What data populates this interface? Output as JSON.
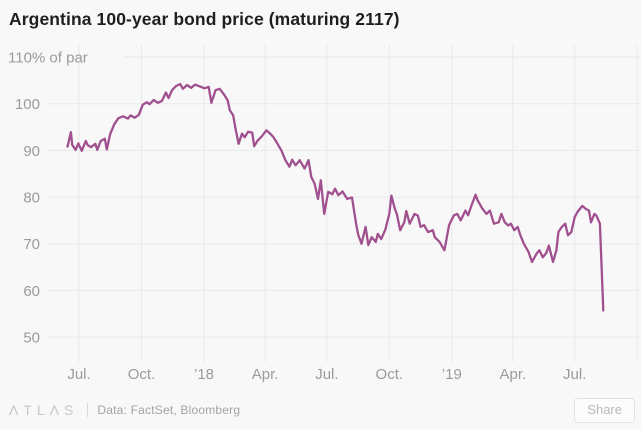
{
  "header": {
    "title": "Argentina 100-year bond price (maturing 2117)"
  },
  "colors": {
    "background": "#f8f8f8",
    "gridline": "#e9e8ea",
    "axis_text": "#9b9b9b",
    "title_text": "#1f1f1f",
    "line": "#a0508e",
    "footer_text": "#a3a3a3",
    "logo_text": "#c7c6ca",
    "share_text": "#b9b9b9",
    "share_border": "#e2e2e2"
  },
  "chart_data": {
    "type": "line",
    "title": "Argentina 100-year bond price (maturing 2117)",
    "unit_label": "% of par",
    "grid": true,
    "legend": "none",
    "y_axis": {
      "min": 50,
      "max": 110,
      "ticks": [
        {
          "value": 110,
          "label": "110% of par",
          "with_unit": true
        },
        {
          "value": 100,
          "label": "100"
        },
        {
          "value": 90,
          "label": "90"
        },
        {
          "value": 80,
          "label": "80"
        },
        {
          "value": 70,
          "label": "70"
        },
        {
          "value": 60,
          "label": "60"
        },
        {
          "value": 50,
          "label": "50"
        }
      ]
    },
    "x_axis": {
      "range": [
        "2017-06-14",
        "2019-10-01"
      ],
      "ticks": [
        {
          "date": "2017-07-01",
          "label": "Jul."
        },
        {
          "date": "2017-10-01",
          "label": "Oct."
        },
        {
          "date": "2018-01-01",
          "label": "’18"
        },
        {
          "date": "2018-04-01",
          "label": "Apr."
        },
        {
          "date": "2018-07-01",
          "label": "Jul."
        },
        {
          "date": "2018-10-01",
          "label": "Oct."
        },
        {
          "date": "2019-01-01",
          "label": "’19"
        },
        {
          "date": "2019-04-01",
          "label": "Apr."
        },
        {
          "date": "2019-07-01",
          "label": "Jul."
        },
        {
          "date": "2019-10-01",
          "label": ""
        }
      ]
    },
    "series": [
      {
        "name": "Bond price (% of par)",
        "color": "#a0508e",
        "points": [
          [
            "2017-06-14",
            90.8
          ],
          [
            "2017-06-19",
            93.9
          ],
          [
            "2017-06-21",
            91.2
          ],
          [
            "2017-06-26",
            90.1
          ],
          [
            "2017-06-30",
            91.5
          ],
          [
            "2017-07-05",
            89.9
          ],
          [
            "2017-07-11",
            92.0
          ],
          [
            "2017-07-14",
            91.1
          ],
          [
            "2017-07-19",
            90.7
          ],
          [
            "2017-07-25",
            91.4
          ],
          [
            "2017-07-28",
            90.1
          ],
          [
            "2017-08-02",
            92.0
          ],
          [
            "2017-08-08",
            92.5
          ],
          [
            "2017-08-11",
            90.2
          ],
          [
            "2017-08-16",
            93.5
          ],
          [
            "2017-08-22",
            95.6
          ],
          [
            "2017-08-28",
            96.9
          ],
          [
            "2017-09-04",
            97.3
          ],
          [
            "2017-09-11",
            96.8
          ],
          [
            "2017-09-15",
            97.5
          ],
          [
            "2017-09-21",
            97.0
          ],
          [
            "2017-09-27",
            97.6
          ],
          [
            "2017-10-03",
            99.8
          ],
          [
            "2017-10-09",
            100.3
          ],
          [
            "2017-10-13",
            99.9
          ],
          [
            "2017-10-19",
            100.8
          ],
          [
            "2017-10-25",
            100.2
          ],
          [
            "2017-10-31",
            100.6
          ],
          [
            "2017-11-06",
            102.4
          ],
          [
            "2017-11-10",
            101.2
          ],
          [
            "2017-11-15",
            102.9
          ],
          [
            "2017-11-21",
            103.8
          ],
          [
            "2017-11-27",
            104.2
          ],
          [
            "2017-12-01",
            103.2
          ],
          [
            "2017-12-07",
            104.0
          ],
          [
            "2017-12-13",
            103.4
          ],
          [
            "2017-12-19",
            104.1
          ],
          [
            "2017-12-26",
            103.7
          ],
          [
            "2018-01-02",
            103.3
          ],
          [
            "2018-01-08",
            103.6
          ],
          [
            "2018-01-12",
            100.2
          ],
          [
            "2018-01-18",
            102.9
          ],
          [
            "2018-01-24",
            103.2
          ],
          [
            "2018-01-30",
            102.1
          ],
          [
            "2018-02-05",
            100.7
          ],
          [
            "2018-02-08",
            98.6
          ],
          [
            "2018-02-13",
            97.5
          ],
          [
            "2018-02-16",
            95.0
          ],
          [
            "2018-02-21",
            91.4
          ],
          [
            "2018-02-26",
            93.6
          ],
          [
            "2018-03-02",
            92.8
          ],
          [
            "2018-03-07",
            94.0
          ],
          [
            "2018-03-13",
            93.8
          ],
          [
            "2018-03-16",
            90.9
          ],
          [
            "2018-03-21",
            92.1
          ],
          [
            "2018-03-27",
            93.0
          ],
          [
            "2018-04-03",
            94.3
          ],
          [
            "2018-04-09",
            93.5
          ],
          [
            "2018-04-13",
            92.9
          ],
          [
            "2018-04-19",
            91.5
          ],
          [
            "2018-04-25",
            90.0
          ],
          [
            "2018-05-01",
            87.9
          ],
          [
            "2018-05-07",
            86.5
          ],
          [
            "2018-05-11",
            88.0
          ],
          [
            "2018-05-16",
            86.8
          ],
          [
            "2018-05-22",
            87.9
          ],
          [
            "2018-05-29",
            86.1
          ],
          [
            "2018-06-04",
            87.9
          ],
          [
            "2018-06-08",
            84.3
          ],
          [
            "2018-06-13",
            82.9
          ],
          [
            "2018-06-18",
            79.6
          ],
          [
            "2018-06-22",
            83.6
          ],
          [
            "2018-06-27",
            76.4
          ],
          [
            "2018-07-03",
            81.1
          ],
          [
            "2018-07-09",
            80.6
          ],
          [
            "2018-07-13",
            81.8
          ],
          [
            "2018-07-18",
            80.4
          ],
          [
            "2018-07-24",
            81.2
          ],
          [
            "2018-07-31",
            79.6
          ],
          [
            "2018-08-07",
            79.9
          ],
          [
            "2018-08-13",
            74.3
          ],
          [
            "2018-08-16",
            72.0
          ],
          [
            "2018-08-21",
            70.0
          ],
          [
            "2018-08-27",
            73.6
          ],
          [
            "2018-08-31",
            69.7
          ],
          [
            "2018-09-05",
            71.4
          ],
          [
            "2018-09-11",
            70.4
          ],
          [
            "2018-09-14",
            72.1
          ],
          [
            "2018-09-19",
            71.0
          ],
          [
            "2018-09-25",
            73.0
          ],
          [
            "2018-10-01",
            76.4
          ],
          [
            "2018-10-04",
            80.3
          ],
          [
            "2018-10-09",
            77.5
          ],
          [
            "2018-10-12",
            76.4
          ],
          [
            "2018-10-17",
            72.9
          ],
          [
            "2018-10-23",
            74.6
          ],
          [
            "2018-10-26",
            77.0
          ],
          [
            "2018-10-31",
            74.3
          ],
          [
            "2018-11-07",
            76.4
          ],
          [
            "2018-11-12",
            76.0
          ],
          [
            "2018-11-16",
            73.6
          ],
          [
            "2018-11-21",
            74.0
          ],
          [
            "2018-11-27",
            72.5
          ],
          [
            "2018-12-04",
            72.9
          ],
          [
            "2018-12-07",
            71.4
          ],
          [
            "2018-12-14",
            70.4
          ],
          [
            "2018-12-21",
            68.6
          ],
          [
            "2018-12-28",
            74.0
          ],
          [
            "2019-01-04",
            76.1
          ],
          [
            "2019-01-09",
            76.4
          ],
          [
            "2019-01-14",
            75.0
          ],
          [
            "2019-01-21",
            77.1
          ],
          [
            "2019-01-25",
            76.1
          ],
          [
            "2019-01-30",
            78.2
          ],
          [
            "2019-02-05",
            80.5
          ],
          [
            "2019-02-08",
            79.3
          ],
          [
            "2019-02-15",
            77.5
          ],
          [
            "2019-02-21",
            76.4
          ],
          [
            "2019-02-26",
            77.1
          ],
          [
            "2019-03-04",
            74.3
          ],
          [
            "2019-03-11",
            74.6
          ],
          [
            "2019-03-15",
            76.4
          ],
          [
            "2019-03-20",
            74.6
          ],
          [
            "2019-03-25",
            73.9
          ],
          [
            "2019-03-29",
            74.3
          ],
          [
            "2019-04-03",
            72.9
          ],
          [
            "2019-04-08",
            73.6
          ],
          [
            "2019-04-12",
            71.8
          ],
          [
            "2019-04-17",
            70.0
          ],
          [
            "2019-04-24",
            68.2
          ],
          [
            "2019-04-29",
            66.1
          ],
          [
            "2019-05-06",
            67.9
          ],
          [
            "2019-05-10",
            68.6
          ],
          [
            "2019-05-15",
            67.1
          ],
          [
            "2019-05-20",
            68.0
          ],
          [
            "2019-05-24",
            69.6
          ],
          [
            "2019-05-30",
            66.1
          ],
          [
            "2019-06-04",
            68.6
          ],
          [
            "2019-06-07",
            72.5
          ],
          [
            "2019-06-12",
            73.6
          ],
          [
            "2019-06-17",
            74.3
          ],
          [
            "2019-06-21",
            71.8
          ],
          [
            "2019-06-26",
            72.5
          ],
          [
            "2019-07-01",
            75.7
          ],
          [
            "2019-07-05",
            76.8
          ],
          [
            "2019-07-12",
            78.1
          ],
          [
            "2019-07-17",
            77.5
          ],
          [
            "2019-07-22",
            77.1
          ],
          [
            "2019-07-25",
            74.6
          ],
          [
            "2019-07-30",
            76.4
          ],
          [
            "2019-08-02",
            76.0
          ],
          [
            "2019-08-07",
            74.3
          ],
          [
            "2019-08-12",
            55.7
          ]
        ]
      }
    ]
  },
  "footer": {
    "logo": "ΛTLΛS",
    "source": "Data: FactSet, Bloomberg",
    "share_label": "Share"
  }
}
